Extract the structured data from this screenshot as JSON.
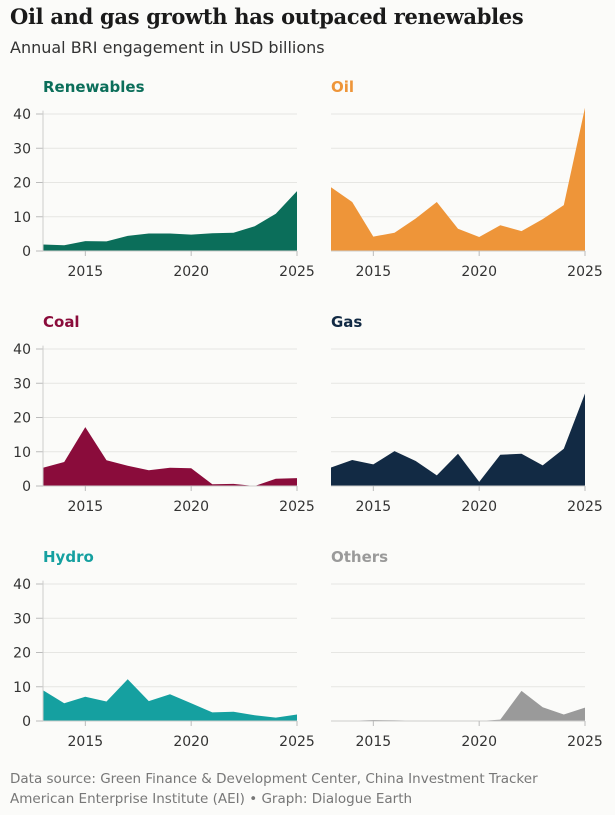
{
  "header": {
    "title": "Oil and gas growth has outpaced renewables",
    "subtitle": "Annual BRI engagement in USD billions"
  },
  "footer": {
    "line1": "Data source: Green Finance & Development Center, China Investment Tracker",
    "line2": "American Enterprise Institute (AEI) • Graph: Dialogue Earth"
  },
  "chart_data": {
    "type": "area",
    "layout": "small-multiples 2x3",
    "x": [
      2013,
      2014,
      2015,
      2016,
      2017,
      2018,
      2019,
      2020,
      2021,
      2022,
      2023,
      2024,
      2025
    ],
    "x_ticks": [
      "2015",
      "2020",
      "2025"
    ],
    "y_ticks": [
      "0",
      "10",
      "20",
      "30",
      "40"
    ],
    "ylim": [
      0,
      42
    ],
    "grid": true,
    "series": [
      {
        "name": "Renewables",
        "color": "#0b6e5a",
        "values": [
          1.9,
          1.7,
          2.9,
          2.8,
          4.4,
          5.1,
          5.1,
          4.8,
          5.2,
          5.3,
          7.2,
          10.9,
          17.5
        ]
      },
      {
        "name": "Oil",
        "color": "#ee9539",
        "values": [
          18.6,
          14.3,
          4.2,
          5.3,
          9.5,
          14.3,
          6.5,
          4.1,
          7.5,
          5.8,
          9.3,
          13.4,
          41.8
        ]
      },
      {
        "name": "Coal",
        "color": "#8a0c3b",
        "values": [
          5.3,
          7.0,
          17.2,
          7.5,
          5.9,
          4.6,
          5.3,
          5.2,
          0.5,
          0.6,
          0,
          2.1,
          2.3
        ]
      },
      {
        "name": "Gas",
        "color": "#122a44",
        "values": [
          5.4,
          7.6,
          6.3,
          10.2,
          7.3,
          3.1,
          9.4,
          1.2,
          9.1,
          9.4,
          6.0,
          10.9,
          27.0
        ]
      },
      {
        "name": "Hydro",
        "color": "#15a0a0",
        "values": [
          9.0,
          5.2,
          7.1,
          5.7,
          12.2,
          5.8,
          7.8,
          5.2,
          2.5,
          2.7,
          1.7,
          1.0,
          1.9
        ]
      },
      {
        "name": "Others",
        "color": "#9a9a9a",
        "values": [
          0,
          0.1,
          0.3,
          0.2,
          0.1,
          0,
          0,
          0,
          0.4,
          8.8,
          4.0,
          1.9,
          3.9
        ]
      }
    ]
  }
}
